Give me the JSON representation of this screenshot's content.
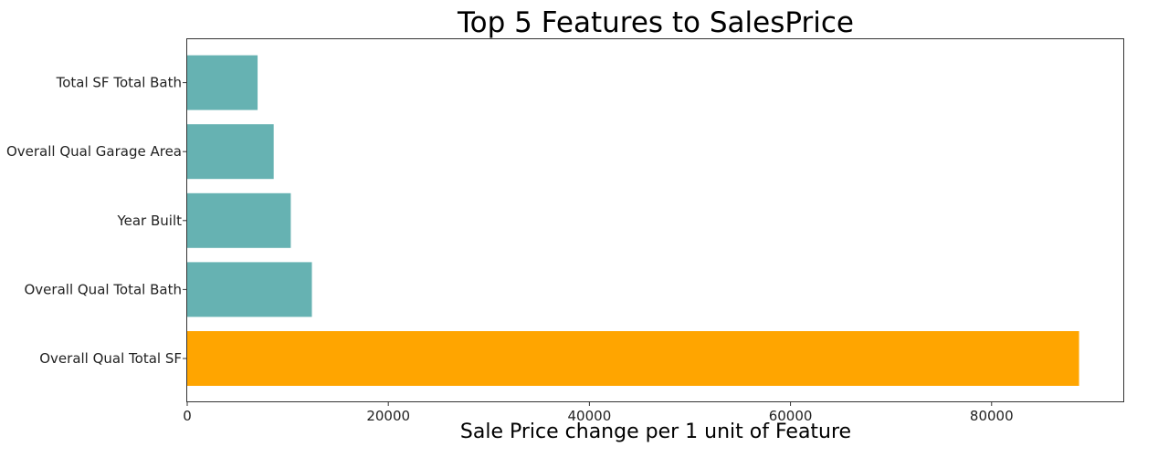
{
  "chart_data": {
    "type": "bar",
    "orientation": "horizontal",
    "title": "Top 5 Features to SalesPrice",
    "xlabel": "Sale Price change per 1 unit of Feature",
    "ylabel": "",
    "categories": [
      "Overall Qual Total SF",
      "Overall Qual Total Bath",
      "Year Built",
      "Overall Qual Garage Area",
      "Total SF Total Bath"
    ],
    "values": [
      88700,
      12400,
      10300,
      8600,
      7000
    ],
    "colors": [
      "#ffa500",
      "#66b2b2",
      "#66b2b2",
      "#66b2b2",
      "#66b2b2"
    ],
    "xlim": [
      0,
      93100
    ],
    "xticks": [
      0,
      20000,
      40000,
      60000,
      80000
    ],
    "xtick_labels": [
      "0",
      "20000",
      "40000",
      "60000",
      "80000"
    ],
    "grid": false,
    "legend": "none"
  }
}
